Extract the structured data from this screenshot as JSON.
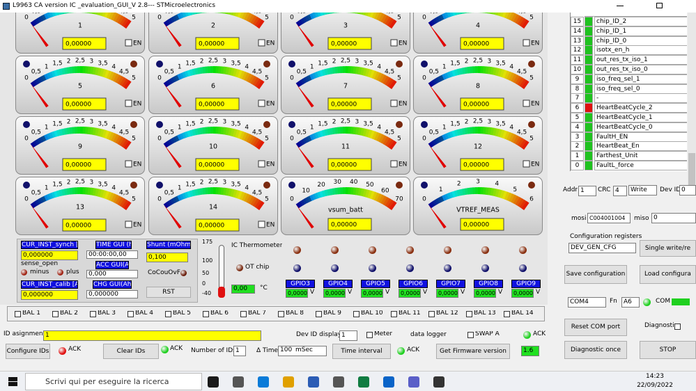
{
  "window": {
    "title": "L9963 CA version IC _evaluation_GUI_V 2.8--- STMicroelectronics"
  },
  "gauges": {
    "cell_scale": [
      "0",
      "0,5",
      "1",
      "1,5",
      "2",
      "2,5",
      "3",
      "3,5",
      "4",
      "4,5",
      "5"
    ],
    "vsum_scale": [
      "0",
      "10",
      "20",
      "30",
      "40",
      "50",
      "60",
      "70"
    ],
    "vtref_scale": [
      "0",
      "1",
      "2",
      "3",
      "4",
      "5",
      "6"
    ],
    "items": [
      {
        "label": "1",
        "value": "0,00000",
        "enable": "EN"
      },
      {
        "label": "2",
        "value": "0,00000",
        "enable": "EN"
      },
      {
        "label": "3",
        "value": "0,00000",
        "enable": "EN"
      },
      {
        "label": "4",
        "value": "0,00000",
        "enable": "EN"
      },
      {
        "label": "5",
        "value": "0,00000",
        "enable": "EN"
      },
      {
        "label": "6",
        "value": "0,00000",
        "enable": "EN"
      },
      {
        "label": "7",
        "value": "0,00000",
        "enable": "EN"
      },
      {
        "label": "8",
        "value": "0,00000",
        "enable": "EN"
      },
      {
        "label": "9",
        "value": "0,00000",
        "enable": "EN"
      },
      {
        "label": "10",
        "value": "0,00000",
        "enable": "EN"
      },
      {
        "label": "11",
        "value": "0,00000",
        "enable": "EN"
      },
      {
        "label": "12",
        "value": "0,00000",
        "enable": "EN"
      },
      {
        "label": "13",
        "value": "0,00000",
        "enable": "EN"
      },
      {
        "label": "14",
        "value": "0,00000",
        "enable": "EN"
      },
      {
        "label": "vsum_batt",
        "value": "0,00000"
      },
      {
        "label": "VTREF_MEAS",
        "value": "0,00000"
      }
    ]
  },
  "current_panel": {
    "synch_label": "CUR_INST_synch [A]",
    "synch_value": "0,000000",
    "sense_open": "sense_open",
    "minus": "minus",
    "plus": "plus",
    "calib_label": "CUR_INST_calib [A]",
    "calib_value": "0,000000",
    "time_label": "TIME GUI (h)",
    "time_value": "00:00:00,00",
    "acc_label": "ACC GUI(A)",
    "acc_value": "0,000",
    "chg_label": "CHG GUI(Ah)",
    "chg_value": "0,000000",
    "shunt_label": "Shunt (mOhm)",
    "shunt_value": "0,100",
    "cocouovf": "CoCouOvF",
    "rst": "RST"
  },
  "thermometer": {
    "scale": [
      "175",
      "100",
      "50",
      "0",
      "-40"
    ],
    "title": "IC Thermometer",
    "ot_chip": "OT chip",
    "value": "0,00",
    "unit": "°C"
  },
  "gpio": [
    {
      "label": "GPIO3",
      "value": "0,00000",
      "unit": "V"
    },
    {
      "label": "GPIO4",
      "value": "0,00000",
      "unit": "V"
    },
    {
      "label": "GPIO5",
      "value": "0,00000",
      "unit": "V"
    },
    {
      "label": "GPIO6",
      "value": "0,00000",
      "unit": "V"
    },
    {
      "label": "GPIO7",
      "value": "0,00000",
      "unit": "V"
    },
    {
      "label": "GPIO8",
      "value": "0,00000",
      "unit": "V"
    },
    {
      "label": "GPIO9",
      "value": "0,00000",
      "unit": "V"
    }
  ],
  "balance": [
    "BAL 1",
    "BAL 2",
    "BAL 3",
    "BAL 4",
    "BAL 5",
    "BAL 6",
    "BAL 7",
    "BAL 8",
    "BAL 9",
    "BAL 10",
    "BAL 11",
    "BAL 12",
    "BAL 13",
    "BAL 14"
  ],
  "controls": {
    "id_assignment_label": "ID asignment",
    "id_assignment_value": "1",
    "dev_id_display_label": "Dev ID display",
    "dev_id_display_value": "1",
    "meter": "Meter",
    "data_logger": "data logger",
    "swap": "SWAP A",
    "ack_top": "ACK",
    "configure_ids": "Configure IDs",
    "ack_configure": "ACK",
    "clear_ids": "Clear IDs",
    "ack_clear": "ACK",
    "number_of_ids_label": "Number of IDs",
    "number_of_ids_value": "1",
    "delta_time_label": "Δ Time",
    "delta_time_value": "100",
    "delta_time_unit": "mSec",
    "time_interval": "Time interval",
    "ack_time": "ACK",
    "get_firmware": "Get Firmware version",
    "firmware_value": "1.6"
  },
  "register_table": {
    "rows": [
      {
        "bit": "15",
        "name": "chip_ID_2",
        "color": "#1fc21f"
      },
      {
        "bit": "14",
        "name": "chip_ID_1",
        "color": "#1fc21f"
      },
      {
        "bit": "13",
        "name": "chip_ID_0",
        "color": "#1fc21f"
      },
      {
        "bit": "12",
        "name": "isotx_en_h",
        "color": "#1fc21f"
      },
      {
        "bit": "11",
        "name": "out_res_tx_iso_1",
        "color": "#1fc21f"
      },
      {
        "bit": "10",
        "name": "out_res_tx_iso_0",
        "color": "#1fc21f"
      },
      {
        "bit": "9",
        "name": "iso_freq_sel_1",
        "color": "#1fc21f"
      },
      {
        "bit": "8",
        "name": "iso_freq_sel_0",
        "color": "#1fc21f"
      },
      {
        "bit": "7",
        "name": "-",
        "color": "#1fc21f"
      },
      {
        "bit": "6",
        "name": "HeartBeatCycle_2",
        "color": "#e01010"
      },
      {
        "bit": "5",
        "name": "HeartBeatCycle_1",
        "color": "#1fc21f"
      },
      {
        "bit": "4",
        "name": "HeartBeatCycle_0",
        "color": "#1fc21f"
      },
      {
        "bit": "3",
        "name": "FaultH_EN",
        "color": "#1fc21f"
      },
      {
        "bit": "2",
        "name": "HeartBeat_En",
        "color": "#1fc21f"
      },
      {
        "bit": "1",
        "name": "Farthest_Unit",
        "color": "#1fc21f"
      },
      {
        "bit": "0",
        "name": "FaultL_force",
        "color": "#1fc21f"
      }
    ]
  },
  "register_panel": {
    "addr_label": "Addr",
    "addr_value": "1",
    "crc_label": "CRC",
    "crc_value": "4",
    "mode": "Write",
    "dev_id_label": "Dev ID",
    "dev_id_value": "0",
    "mosi_label": "mosi",
    "mosi_value": "C004001004",
    "miso_label": "miso",
    "miso_value": "0",
    "config_registers": "Configuration registers",
    "register_name": "DEV_GEN_CFG",
    "single_write": "Single write/re",
    "save_config": "Save configuration",
    "load_config": "Load configura",
    "com_port": "COM4",
    "fn_label": "Fn",
    "fn_value": "A6",
    "com_label": "COM",
    "reset_com": "Reset COM port",
    "diagnostic": "Diagnostic",
    "diagnostic_once": "Diagnostic once",
    "stop": "STOP"
  },
  "taskbar": {
    "search": "Scrivi qui per eseguire la ricerca",
    "time": "14:23",
    "date": "22/09/2022"
  }
}
